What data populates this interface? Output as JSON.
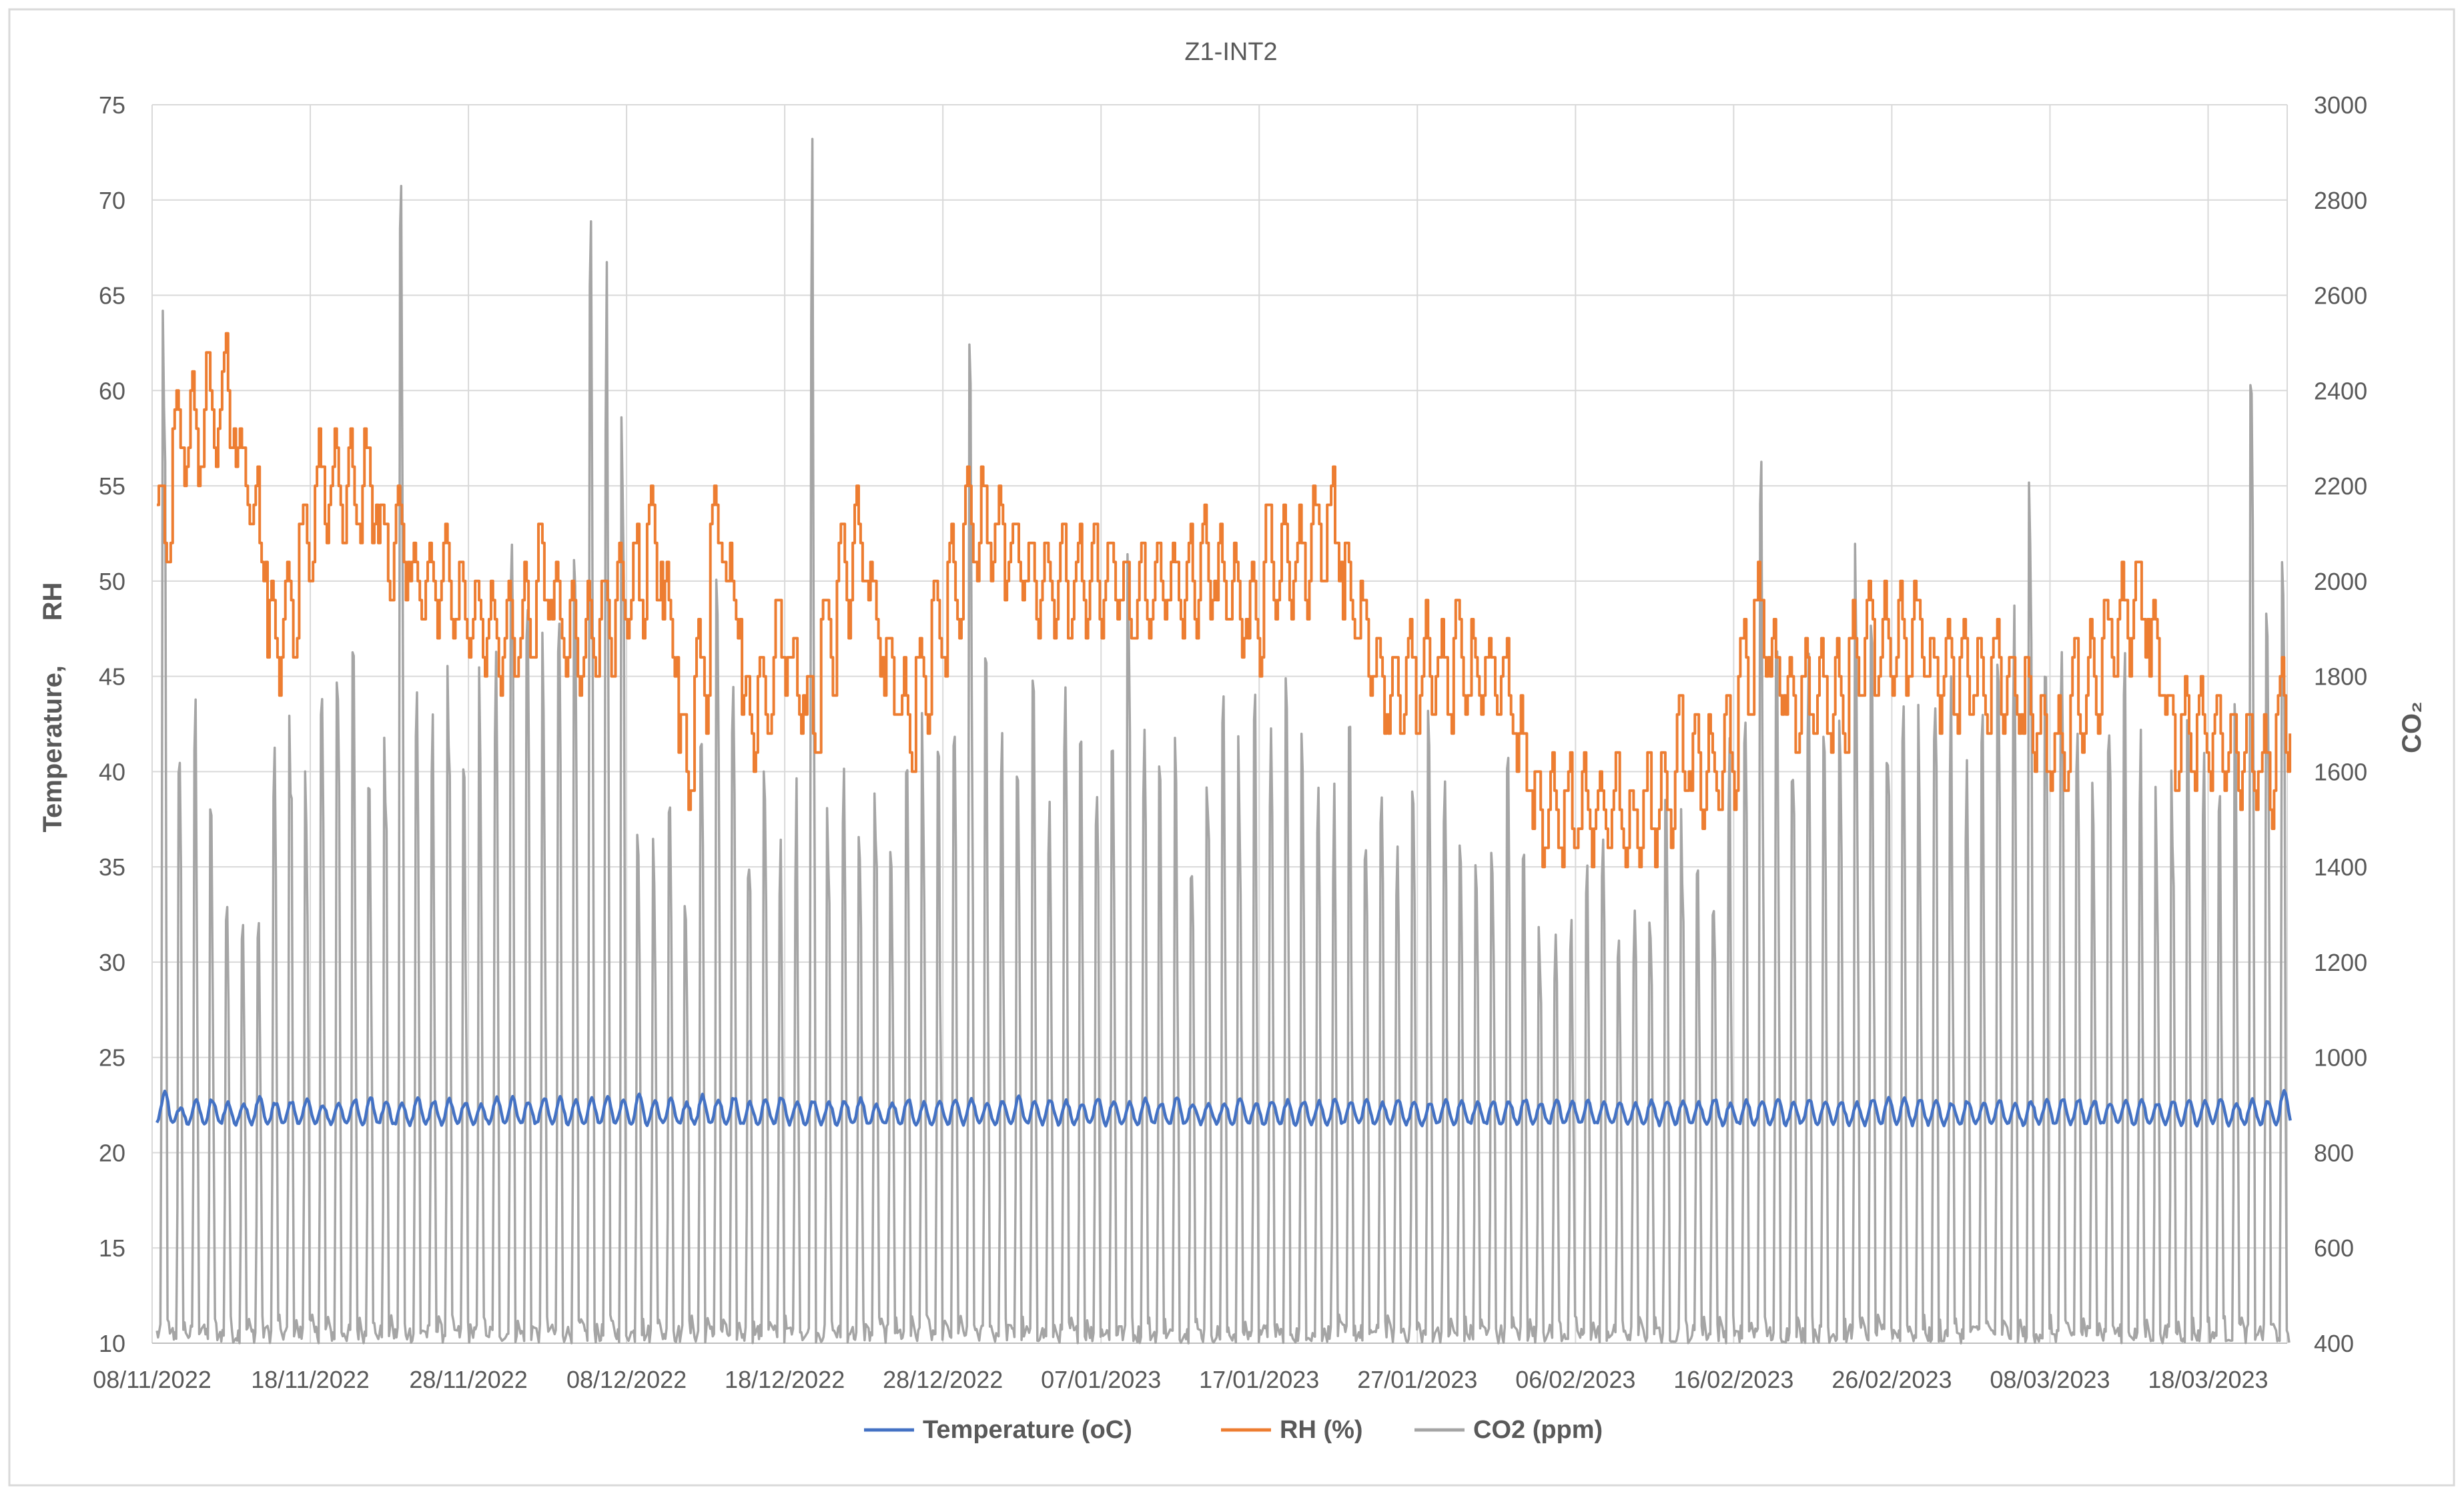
{
  "chart_data": {
    "type": "line",
    "title": "Z1-INT2",
    "ylabel_left": "Temperature,      RH",
    "ylabel_right": "CO₂",
    "ylim_left": [
      10,
      75
    ],
    "ylim_right": [
      400,
      3000
    ],
    "xlim": [
      "08/11/2022",
      "23/03/2023"
    ],
    "y_ticks_left": [
      "10",
      "15",
      "20",
      "25",
      "30",
      "35",
      "40",
      "45",
      "50",
      "55",
      "60",
      "65",
      "70",
      "75"
    ],
    "y_ticks_right": [
      "400",
      "600",
      "800",
      "1000",
      "1200",
      "1400",
      "1600",
      "1800",
      "2000",
      "2200",
      "2400",
      "2600",
      "2800",
      "3000"
    ],
    "x_ticks": [
      "08/11/2022",
      "18/11/2022",
      "28/11/2022",
      "08/12/2022",
      "18/12/2022",
      "28/12/2022",
      "07/01/2023",
      "17/01/2023",
      "27/01/2023",
      "06/02/2023",
      "16/02/2023",
      "26/02/2023",
      "08/03/2023",
      "18/03/2023"
    ],
    "grid": true,
    "legend_position": "bottom",
    "series": [
      {
        "name": "Temperature (oC)",
        "axis": "left",
        "color": "#4472C4",
        "day_min": 21.5,
        "day_max": [
          23.2,
          22.4,
          22.7,
          22.8,
          22.6,
          22.5,
          22.9,
          22.6,
          22.7,
          22.8,
          22.5,
          22.6,
          22.8,
          22.9,
          22.7,
          22.6,
          22.9,
          22.7,
          22.8,
          22.6,
          22.5,
          22.9,
          22.9,
          22.7,
          22.9,
          22.9,
          22.7,
          22.8,
          22.9,
          22.8,
          23.0,
          22.7,
          22.8,
          22.6,
          23.0,
          22.8,
          22.9,
          22.6,
          22.8,
          22.9,
          22.7,
          22.7,
          22.6,
          22.7,
          22.8,
          22.5,
          22.6,
          22.8,
          22.6,
          22.7,
          22.8,
          22.8,
          22.6,
          22.7,
          22.9,
          22.7,
          22.8,
          22.7,
          22.6,
          22.8,
          22.7,
          22.6,
          22.8,
          22.6,
          22.9,
          22.6,
          22.6,
          22.6,
          22.8,
          22.6,
          22.7,
          22.7,
          22.7,
          22.7,
          22.8,
          22.6,
          22.8,
          22.6,
          22.8,
          22.6,
          22.6,
          22.7,
          22.7,
          22.6,
          22.7,
          22.7,
          22.8,
          22.6,
          22.8,
          22.7,
          22.7,
          22.6,
          22.6,
          22.6,
          22.7,
          22.7,
          22.7,
          22.6,
          22.8,
          22.6,
          22.7,
          22.7,
          22.8,
          22.6,
          22.8,
          22.7,
          22.7,
          22.6,
          22.8,
          22.9,
          22.9,
          22.8,
          22.8,
          22.6,
          22.7,
          22.6,
          22.8,
          22.6,
          22.7,
          22.7,
          22.8,
          22.8,
          22.7,
          22.6,
          22.8,
          22.7,
          22.6,
          22.7,
          22.7,
          22.7,
          22.8,
          22.6,
          22.8,
          22.7,
          23.2,
          22.8,
          22.6
        ]
      },
      {
        "name": "RH (%)",
        "axis": "left",
        "color": "#ED7D31",
        "day_x": [
          0,
          1,
          2,
          3,
          4,
          5,
          6,
          7,
          8,
          9,
          10,
          11,
          12,
          13,
          14,
          15,
          16,
          17,
          18,
          19,
          20,
          21,
          22,
          23,
          24,
          25,
          26,
          27,
          28,
          29,
          30,
          31,
          32,
          33,
          34,
          35,
          36,
          37,
          38,
          39,
          40,
          41,
          42,
          43,
          44,
          45,
          46,
          47,
          48,
          49,
          50,
          51,
          52,
          53,
          54,
          55,
          56,
          57,
          58,
          59,
          60,
          61,
          62,
          63,
          64,
          65,
          66,
          67,
          68,
          69,
          70,
          71,
          72,
          73,
          74,
          75,
          76,
          77,
          78,
          79,
          80,
          81,
          82,
          83,
          84,
          85,
          86,
          87,
          88,
          89,
          90,
          91,
          92,
          93,
          94,
          95,
          96,
          97,
          98,
          99,
          100,
          101,
          102,
          103,
          104,
          105,
          106,
          107,
          108,
          109,
          110,
          111,
          112,
          113,
          114,
          115,
          116,
          117,
          118,
          119,
          120,
          121,
          122,
          123,
          124,
          125,
          126,
          127,
          128,
          129,
          130,
          131,
          132,
          133,
          134
        ],
        "day_mean": [
          53,
          58,
          58,
          59,
          60,
          56,
          53,
          47,
          48,
          52,
          55,
          55,
          55,
          55,
          52,
          52,
          50,
          50,
          50,
          49,
          48,
          47,
          47,
          48,
          50,
          48,
          47,
          47,
          48,
          49,
          50,
          52,
          48,
          41,
          45,
          53,
          49,
          43,
          44,
          47,
          45,
          43,
          47,
          50,
          52,
          48,
          45,
          43,
          45,
          48,
          50,
          53,
          53,
          52,
          51,
          50,
          50,
          50,
          50,
          50,
          50,
          49,
          49,
          50,
          50,
          50,
          51,
          50,
          49,
          48,
          51,
          51,
          51,
          52,
          53,
          49,
          47,
          45,
          44,
          45,
          46,
          45,
          46,
          45,
          45,
          44,
          41,
          38,
          38,
          38,
          38,
          38,
          38,
          37,
          38,
          39,
          41,
          40,
          40,
          41,
          45,
          48,
          45,
          43,
          44,
          44,
          44,
          46,
          47,
          47,
          47,
          47,
          45,
          45,
          45,
          45,
          45,
          44,
          43,
          41,
          41,
          44,
          45,
          47,
          48,
          49,
          46,
          42,
          42,
          42,
          42,
          41,
          41,
          40,
          43
        ],
        "amplitude": 5
      },
      {
        "name": "CO2 (ppm)",
        "axis": "right",
        "color": "#A5A5A5",
        "daily_min": 400,
        "day_x": [
          0,
          1,
          2,
          3,
          4,
          5,
          6,
          7,
          8,
          9,
          10,
          11,
          12,
          13,
          14,
          15,
          16,
          17,
          18,
          19,
          20,
          21,
          22,
          23,
          24,
          25,
          26,
          27,
          28,
          29,
          30,
          31,
          32,
          33,
          34,
          35,
          36,
          37,
          38,
          39,
          40,
          41,
          42,
          43,
          44,
          45,
          46,
          47,
          48,
          49,
          50,
          51,
          52,
          53,
          54,
          55,
          56,
          57,
          58,
          59,
          60,
          61,
          62,
          63,
          64,
          65,
          66,
          67,
          68,
          69,
          70,
          71,
          72,
          73,
          74,
          75,
          76,
          77,
          78,
          79,
          80,
          81,
          82,
          83,
          84,
          85,
          86,
          87,
          88,
          89,
          90,
          91,
          92,
          93,
          94,
          95,
          96,
          97,
          98,
          99,
          100,
          101,
          102,
          103,
          104,
          105,
          106,
          107,
          108,
          109,
          110,
          111,
          112,
          113,
          114,
          115,
          116,
          117,
          118,
          119,
          120,
          121,
          122,
          123,
          124,
          125,
          126,
          127,
          128,
          129,
          130,
          131,
          132,
          133,
          134
        ],
        "daily_peak": [
          2700,
          1650,
          1800,
          1550,
          1450,
          1400,
          1350,
          1700,
          1800,
          1750,
          1850,
          1950,
          1900,
          1800,
          1700,
          2950,
          1850,
          1750,
          1850,
          1700,
          1850,
          1900,
          2200,
          2050,
          1950,
          2000,
          2050,
          2900,
          2700,
          2400,
          1650,
          1600,
          1700,
          1500,
          1800,
          2150,
          1800,
          1600,
          1750,
          1550,
          1600,
          3000,
          1550,
          1700,
          1500,
          1650,
          1600,
          1750,
          1800,
          1650,
          1750,
          2600,
          1900,
          1700,
          1750,
          1800,
          1600,
          1800,
          1800,
          1700,
          1750,
          2200,
          1800,
          1650,
          1700,
          1600,
          1750,
          1800,
          1700,
          1800,
          1750,
          1850,
          1700,
          1650,
          1600,
          1750,
          1500,
          1700,
          1550,
          1650,
          1750,
          1600,
          1500,
          1450,
          1600,
          1650,
          1500,
          1400,
          1350,
          1300,
          1450,
          1500,
          1350,
          1400,
          1450,
          1550,
          1600,
          1550,
          1500,
          1700,
          1750,
          2450,
          1900,
          1850,
          1950,
          1800,
          1850,
          2150,
          1950,
          1800,
          1850,
          1750,
          1900,
          1800,
          1700,
          1800,
          1850,
          1950,
          2300,
          1850,
          1900,
          1800,
          1750,
          1850,
          1950,
          1700,
          1600,
          1650,
          1750,
          1700,
          1650,
          1750,
          2500,
          2100,
          2050
        ]
      }
    ]
  }
}
